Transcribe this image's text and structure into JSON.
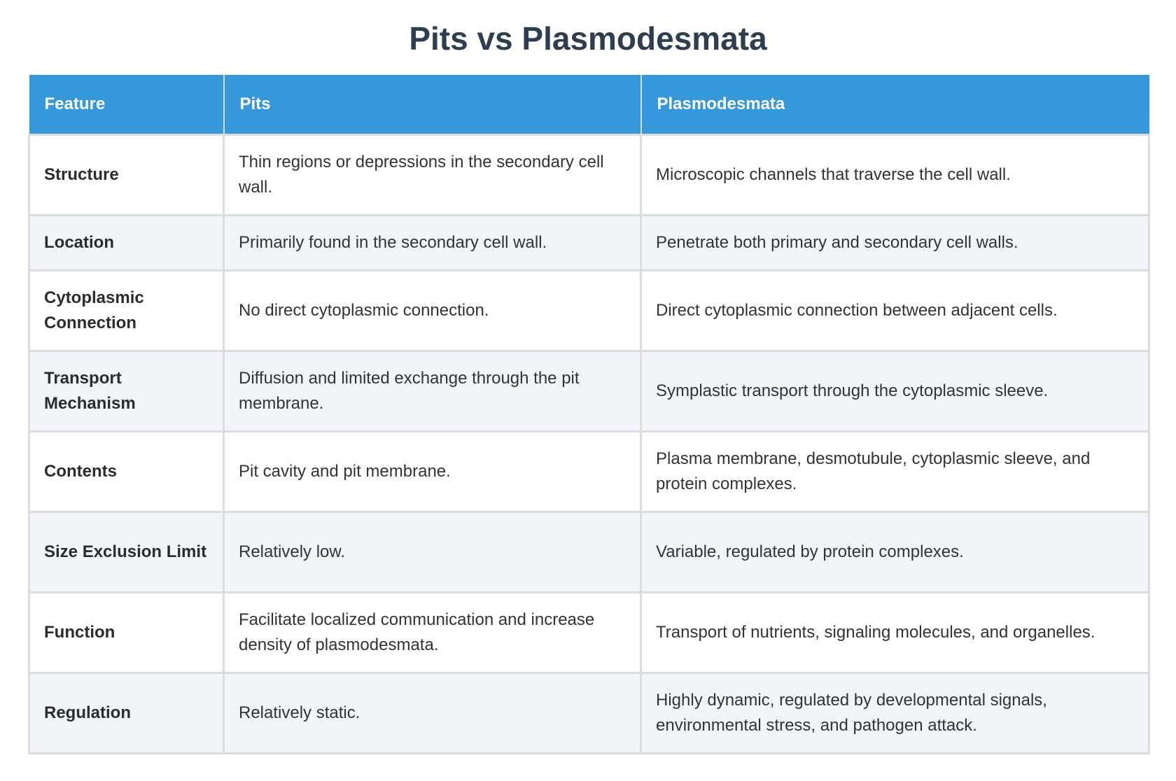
{
  "title": "Pits vs Plasmodesmata",
  "table": {
    "headers": [
      "Feature",
      "Pits",
      "Plasmodesmata"
    ],
    "rows": [
      {
        "feature": "Structure",
        "pits": "Thin regions or depressions in the secondary cell wall.",
        "plasmodesmata": "Microscopic channels that traverse the cell wall."
      },
      {
        "feature": "Location",
        "pits": "Primarily found in the secondary cell wall.",
        "plasmodesmata": "Penetrate both primary and secondary cell walls."
      },
      {
        "feature": "Cytoplasmic Connection",
        "pits": "No direct cytoplasmic connection.",
        "plasmodesmata": "Direct cytoplasmic connection between adjacent cells."
      },
      {
        "feature": "Transport Mechanism",
        "pits": "Diffusion and limited exchange through the pit membrane.",
        "plasmodesmata": "Symplastic transport through the cytoplasmic sleeve."
      },
      {
        "feature": "Contents",
        "pits": "Pit cavity and pit membrane.",
        "plasmodesmata": "Plasma membrane, desmotubule, cytoplasmic sleeve, and protein complexes."
      },
      {
        "feature": "Size Exclusion Limit",
        "pits": "Relatively low.",
        "plasmodesmata": "Variable, regulated by protein complexes."
      },
      {
        "feature": "Function",
        "pits": "Facilitate localized communication and increase density of plasmodesmata.",
        "plasmodesmata": "Transport of nutrients, signaling molecules, and organelles."
      },
      {
        "feature": "Regulation",
        "pits": "Relatively static.",
        "plasmodesmata": "Highly dynamic, regulated by developmental signals, environmental stress, and pathogen attack."
      }
    ]
  }
}
